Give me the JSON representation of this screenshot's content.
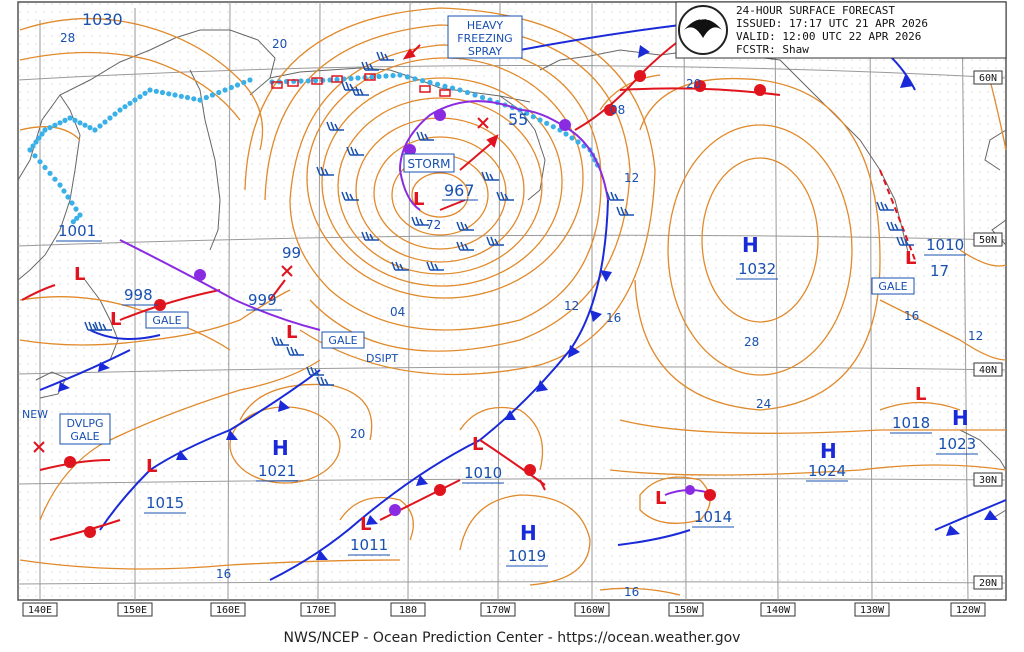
{
  "header": {
    "title": "24-HOUR SURFACE FORECAST",
    "issued": "ISSUED: 17:17 UTC 21 APR 2026",
    "valid": "VALID:  12:00 UTC 22 APR 2026",
    "forecaster": "FCSTR:  Shaw",
    "logo": "NOAA"
  },
  "footer": "NWS/NCEP - Ocean Prediction Center - https://ocean.weather.gov",
  "lon_labels": [
    "140E",
    "150E",
    "160E",
    "170E",
    "180",
    "170W",
    "160W",
    "150W",
    "140W",
    "130W",
    "120W"
  ],
  "lat_labels": [
    "60N",
    "50N",
    "40N",
    "30N",
    "20N"
  ],
  "highs": [
    {
      "symbol": "H",
      "pressure": "1032"
    },
    {
      "symbol": "H",
      "pressure": "1021"
    },
    {
      "symbol": "H",
      "pressure": "1019"
    },
    {
      "symbol": "H",
      "pressure": "1024"
    },
    {
      "symbol": "H",
      "pressure": "1023"
    }
  ],
  "lows": [
    {
      "symbol": "L",
      "pressure": "967"
    },
    {
      "symbol": "L",
      "pressure": "998"
    },
    {
      "symbol": "L",
      "pressure": "999"
    },
    {
      "symbol": "L",
      "pressure": "1001"
    },
    {
      "symbol": "L",
      "pressure": "1015"
    },
    {
      "symbol": "L",
      "pressure": "1010"
    },
    {
      "symbol": "L",
      "pressure": "1011"
    },
    {
      "symbol": "L",
      "pressure": "1014"
    },
    {
      "symbol": "L",
      "pressure": "1018"
    },
    {
      "symbol": "L",
      "pressure": "1010"
    }
  ],
  "isobar_labels": [
    "1030",
    "28",
    "20",
    "08",
    "12",
    "16",
    "12",
    "04",
    "20",
    "16",
    "28",
    "24",
    "20",
    "16",
    "12",
    "16",
    "99",
    "55",
    "72",
    "17"
  ],
  "warnings": {
    "freezing_spray": [
      "HEAVY",
      "FREEZING",
      "SPRAY"
    ],
    "storm": "STORM",
    "gale": "GALE",
    "dvlpg": [
      "DVLPG",
      "GALE"
    ],
    "new": "NEW",
    "dsipt": "DSIPT"
  },
  "colors": {
    "isobar": "#e08a2c",
    "cold_front": "#1a2ad8",
    "warm_front": "#e0141e",
    "occluded": "#8a2be2",
    "ice": "#3ab0e8",
    "text_blue": "#1850b0",
    "grid": "#9a9a9a",
    "coast": "#666"
  }
}
